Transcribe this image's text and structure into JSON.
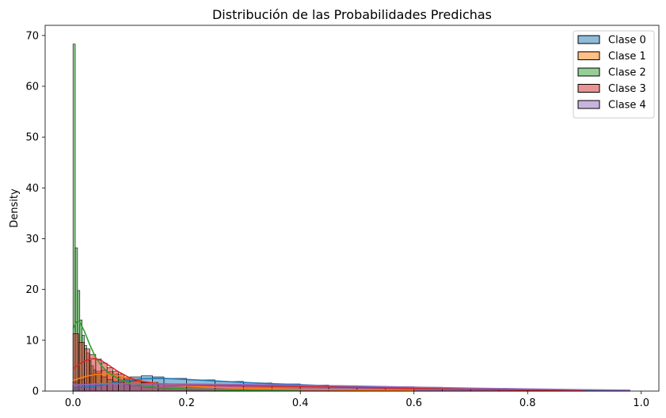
{
  "chart_data": {
    "type": "histogram",
    "title": "Distribución de las Probabilidades Predichas",
    "xlabel": "",
    "ylabel": "Density",
    "xlim": [
      -0.049,
      1.031
    ],
    "ylim": [
      0,
      72
    ],
    "x_ticks": [
      0.0,
      0.2,
      0.4,
      0.6,
      0.8,
      1.0
    ],
    "x_tick_labels": [
      "0.0",
      "0.2",
      "0.4",
      "0.6",
      "0.8",
      "1.0"
    ],
    "y_ticks": [
      0,
      10,
      20,
      30,
      40,
      50,
      60,
      70
    ],
    "y_tick_labels": [
      "0",
      "10",
      "20",
      "30",
      "40",
      "50",
      "60",
      "70"
    ],
    "legend_position": "upper right",
    "series": [
      {
        "name": "Clase 0",
        "color": "#1f77b4",
        "bins": [
          [
            0.0,
            0.02,
            0.4
          ],
          [
            0.02,
            0.04,
            0.7
          ],
          [
            0.04,
            0.06,
            1.0
          ],
          [
            0.06,
            0.08,
            1.4
          ],
          [
            0.08,
            0.1,
            2.2
          ],
          [
            0.1,
            0.12,
            2.8
          ],
          [
            0.12,
            0.14,
            3.0
          ],
          [
            0.14,
            0.16,
            2.8
          ],
          [
            0.16,
            0.2,
            2.5
          ],
          [
            0.2,
            0.25,
            2.2
          ],
          [
            0.25,
            0.3,
            1.9
          ],
          [
            0.3,
            0.35,
            1.6
          ],
          [
            0.35,
            0.4,
            1.4
          ],
          [
            0.4,
            0.45,
            1.2
          ],
          [
            0.45,
            0.5,
            1.0
          ],
          [
            0.5,
            0.55,
            0.8
          ],
          [
            0.55,
            0.6,
            0.7
          ],
          [
            0.6,
            0.7,
            0.5
          ],
          [
            0.7,
            0.8,
            0.35
          ],
          [
            0.8,
            0.9,
            0.25
          ],
          [
            0.9,
            0.98,
            0.15
          ]
        ],
        "kde": [
          [
            0.0,
            0.6
          ],
          [
            0.04,
            1.0
          ],
          [
            0.08,
            1.8
          ],
          [
            0.12,
            2.4
          ],
          [
            0.16,
            2.5
          ],
          [
            0.2,
            2.3
          ],
          [
            0.25,
            2.0
          ],
          [
            0.3,
            1.7
          ],
          [
            0.35,
            1.45
          ],
          [
            0.4,
            1.25
          ],
          [
            0.45,
            1.05
          ],
          [
            0.5,
            0.9
          ],
          [
            0.6,
            0.65
          ],
          [
            0.7,
            0.45
          ],
          [
            0.8,
            0.3
          ],
          [
            0.9,
            0.2
          ],
          [
            0.98,
            0.12
          ]
        ]
      },
      {
        "name": "Clase 1",
        "color": "#ff7f0e",
        "bins": [
          [
            0.0,
            0.01,
            1.8
          ],
          [
            0.01,
            0.02,
            2.2
          ],
          [
            0.02,
            0.03,
            2.8
          ],
          [
            0.03,
            0.04,
            3.4
          ],
          [
            0.04,
            0.05,
            3.9
          ],
          [
            0.05,
            0.06,
            4.1
          ],
          [
            0.06,
            0.07,
            3.8
          ],
          [
            0.07,
            0.08,
            3.3
          ],
          [
            0.08,
            0.09,
            2.8
          ],
          [
            0.09,
            0.1,
            2.4
          ],
          [
            0.1,
            0.12,
            2.0
          ],
          [
            0.12,
            0.14,
            1.6
          ],
          [
            0.14,
            0.16,
            1.3
          ],
          [
            0.16,
            0.2,
            1.0
          ],
          [
            0.2,
            0.25,
            0.8
          ],
          [
            0.25,
            0.3,
            0.6
          ],
          [
            0.3,
            0.4,
            0.45
          ],
          [
            0.4,
            0.5,
            0.3
          ],
          [
            0.5,
            0.6,
            0.2
          ]
        ],
        "kde": [
          [
            0.0,
            2.1
          ],
          [
            0.02,
            2.8
          ],
          [
            0.04,
            3.3
          ],
          [
            0.06,
            3.4
          ],
          [
            0.08,
            3.0
          ],
          [
            0.1,
            2.5
          ],
          [
            0.12,
            2.0
          ],
          [
            0.15,
            1.5
          ],
          [
            0.2,
            1.0
          ],
          [
            0.25,
            0.75
          ],
          [
            0.3,
            0.55
          ],
          [
            0.4,
            0.35
          ],
          [
            0.5,
            0.2
          ],
          [
            0.6,
            0.12
          ]
        ]
      },
      {
        "name": "Clase 2",
        "color": "#2ca02c",
        "bins": [
          [
            0.0,
            0.004,
            68.3
          ],
          [
            0.004,
            0.008,
            28.2
          ],
          [
            0.008,
            0.012,
            19.8
          ],
          [
            0.012,
            0.016,
            14.0
          ],
          [
            0.016,
            0.02,
            11.0
          ],
          [
            0.02,
            0.024,
            9.0
          ],
          [
            0.024,
            0.028,
            7.5
          ],
          [
            0.028,
            0.032,
            6.0
          ],
          [
            0.032,
            0.036,
            5.0
          ],
          [
            0.036,
            0.04,
            4.2
          ],
          [
            0.04,
            0.05,
            3.5
          ],
          [
            0.05,
            0.06,
            2.8
          ],
          [
            0.06,
            0.07,
            2.3
          ],
          [
            0.07,
            0.08,
            1.9
          ],
          [
            0.08,
            0.09,
            1.6
          ],
          [
            0.09,
            0.1,
            1.3
          ],
          [
            0.1,
            0.12,
            1.0
          ],
          [
            0.12,
            0.15,
            0.7
          ],
          [
            0.15,
            0.2,
            0.45
          ],
          [
            0.2,
            0.3,
            0.25
          ]
        ],
        "kde": [
          [
            0.0,
            12.2
          ],
          [
            0.004,
            13.3
          ],
          [
            0.008,
            13.8
          ],
          [
            0.012,
            13.6
          ],
          [
            0.02,
            11.8
          ],
          [
            0.03,
            9.0
          ],
          [
            0.04,
            6.6
          ],
          [
            0.05,
            5.0
          ],
          [
            0.06,
            3.8
          ],
          [
            0.08,
            2.4
          ],
          [
            0.1,
            1.6
          ],
          [
            0.12,
            1.1
          ],
          [
            0.15,
            0.7
          ],
          [
            0.2,
            0.4
          ],
          [
            0.3,
            0.15
          ],
          [
            0.4,
            0.05
          ]
        ]
      },
      {
        "name": "Clase 3",
        "color": "#d62728",
        "bins": [
          [
            0.0,
            0.01,
            11.3
          ],
          [
            0.01,
            0.02,
            9.6
          ],
          [
            0.02,
            0.03,
            8.3
          ],
          [
            0.03,
            0.04,
            7.2
          ],
          [
            0.04,
            0.05,
            6.3
          ],
          [
            0.05,
            0.06,
            5.5
          ],
          [
            0.06,
            0.07,
            4.6
          ],
          [
            0.07,
            0.08,
            3.9
          ],
          [
            0.08,
            0.09,
            3.3
          ],
          [
            0.09,
            0.1,
            2.7
          ],
          [
            0.1,
            0.12,
            2.1
          ],
          [
            0.12,
            0.15,
            1.7
          ],
          [
            0.15,
            0.2,
            1.4
          ],
          [
            0.2,
            0.25,
            1.2
          ],
          [
            0.25,
            0.3,
            1.1
          ],
          [
            0.3,
            0.4,
            1.0
          ],
          [
            0.4,
            0.5,
            0.9
          ],
          [
            0.5,
            0.6,
            0.7
          ],
          [
            0.6,
            0.7,
            0.5
          ],
          [
            0.7,
            0.8,
            0.35
          ],
          [
            0.8,
            0.9,
            0.2
          ]
        ],
        "kde": [
          [
            0.0,
            4.4
          ],
          [
            0.01,
            5.2
          ],
          [
            0.02,
            5.9
          ],
          [
            0.03,
            6.3
          ],
          [
            0.04,
            6.4
          ],
          [
            0.05,
            6.0
          ],
          [
            0.06,
            5.3
          ],
          [
            0.08,
            3.8
          ],
          [
            0.1,
            2.6
          ],
          [
            0.12,
            1.9
          ],
          [
            0.15,
            1.45
          ],
          [
            0.2,
            1.2
          ],
          [
            0.3,
            1.05
          ],
          [
            0.4,
            0.9
          ],
          [
            0.5,
            0.7
          ],
          [
            0.6,
            0.5
          ],
          [
            0.7,
            0.35
          ],
          [
            0.8,
            0.2
          ],
          [
            0.9,
            0.1
          ]
        ]
      },
      {
        "name": "Clase 4",
        "color": "#9467bd",
        "bins": [
          [
            0.0,
            0.02,
            1.2
          ],
          [
            0.02,
            0.04,
            1.4
          ],
          [
            0.04,
            0.06,
            1.5
          ],
          [
            0.06,
            0.08,
            1.5
          ],
          [
            0.08,
            0.1,
            1.5
          ],
          [
            0.1,
            0.15,
            1.45
          ],
          [
            0.15,
            0.2,
            1.4
          ],
          [
            0.2,
            0.25,
            1.35
          ],
          [
            0.25,
            0.3,
            1.3
          ],
          [
            0.3,
            0.35,
            1.25
          ],
          [
            0.35,
            0.4,
            1.2
          ],
          [
            0.4,
            0.45,
            1.15
          ],
          [
            0.45,
            0.5,
            1.05
          ],
          [
            0.5,
            0.55,
            0.95
          ],
          [
            0.55,
            0.6,
            0.85
          ],
          [
            0.6,
            0.65,
            0.75
          ],
          [
            0.65,
            0.7,
            0.65
          ],
          [
            0.7,
            0.75,
            0.55
          ],
          [
            0.75,
            0.8,
            0.45
          ],
          [
            0.8,
            0.85,
            0.38
          ],
          [
            0.85,
            0.9,
            0.3
          ],
          [
            0.9,
            0.95,
            0.22
          ],
          [
            0.95,
            0.98,
            0.15
          ]
        ],
        "kde": [
          [
            0.0,
            1.2
          ],
          [
            0.05,
            1.45
          ],
          [
            0.1,
            1.45
          ],
          [
            0.2,
            1.38
          ],
          [
            0.3,
            1.28
          ],
          [
            0.4,
            1.15
          ],
          [
            0.5,
            0.98
          ],
          [
            0.6,
            0.78
          ],
          [
            0.7,
            0.58
          ],
          [
            0.8,
            0.42
          ],
          [
            0.9,
            0.26
          ],
          [
            0.98,
            0.16
          ]
        ]
      }
    ]
  }
}
